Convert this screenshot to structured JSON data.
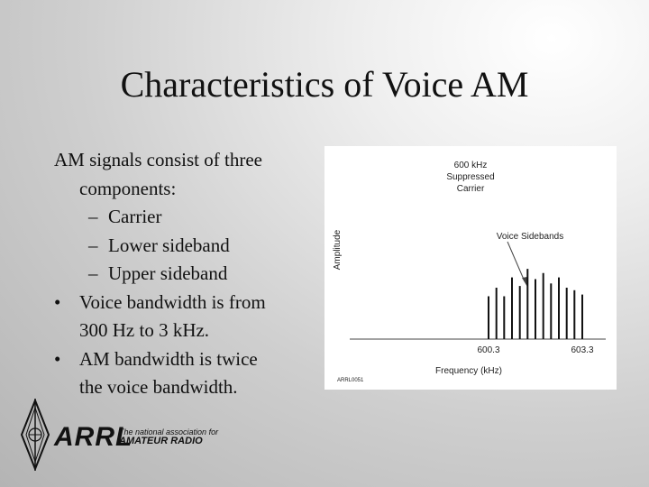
{
  "slide": {
    "title": "Characteristics of Voice AM",
    "intro_line1": "AM signals consist of three",
    "intro_line2": "components:",
    "sub_items": [
      "Carrier",
      "Lower sideband",
      "Upper sideband"
    ],
    "bullets": [
      {
        "line1": "Voice bandwidth is from",
        "line2": "300 Hz to 3 kHz."
      },
      {
        "line1": "AM bandwidth is twice",
        "line2": "the voice bandwidth."
      }
    ]
  },
  "figure": {
    "carrier_label": [
      "600 kHz",
      "Suppressed",
      "Carrier"
    ],
    "sidebands_label": "Voice Sidebands",
    "ylabel": "Amplitude",
    "xlabel": "Frequency (kHz)",
    "tick_left": "600.3",
    "tick_right": "603.3",
    "credit": "ARRL0051"
  },
  "chart_data": {
    "type": "bar",
    "xlabel": "Frequency (kHz)",
    "ylabel": "Amplitude",
    "x_ticks": [
      600.3,
      603.3
    ],
    "bars": [
      {
        "x": 600.3,
        "y": 0.5
      },
      {
        "x": 600.55,
        "y": 0.6
      },
      {
        "x": 600.8,
        "y": 0.5
      },
      {
        "x": 601.05,
        "y": 0.72
      },
      {
        "x": 601.3,
        "y": 0.62
      },
      {
        "x": 601.55,
        "y": 0.82
      },
      {
        "x": 601.8,
        "y": 0.7
      },
      {
        "x": 602.05,
        "y": 0.77
      },
      {
        "x": 602.3,
        "y": 0.65
      },
      {
        "x": 602.55,
        "y": 0.72
      },
      {
        "x": 602.8,
        "y": 0.6
      },
      {
        "x": 603.05,
        "y": 0.57
      },
      {
        "x": 603.3,
        "y": 0.52
      }
    ],
    "annotations": [
      "600 kHz Suppressed Carrier",
      "Voice Sidebands"
    ]
  },
  "logo": {
    "word": "ARRL",
    "tagline1": "The national association for",
    "tagline2": "AMATEUR RADIO",
    "icon": "arrl-diamond-logo-icon"
  }
}
